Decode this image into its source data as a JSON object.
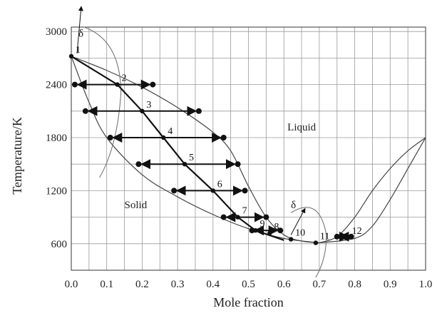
{
  "chart_data": {
    "type": "line",
    "xlabel": "Mole fraction",
    "ylabel": "Temperature/K",
    "xlim": [
      0.0,
      1.0
    ],
    "ylim": [
      300,
      3050
    ],
    "grid": true,
    "x_ticks": [
      "0.0",
      "0.1",
      "0.2",
      "0.3",
      "0.4",
      "0.5",
      "0.6",
      "0.7",
      "0.8",
      "0.9",
      "1.0"
    ],
    "y_ticks": [
      "600",
      "1200",
      "1800",
      "2400",
      "3000"
    ],
    "region_labels": [
      {
        "text": "Liquid",
        "x": 0.61,
        "y": 1880
      },
      {
        "text": "Solid",
        "x": 0.15,
        "y": 1000
      }
    ],
    "delta_labels": [
      "δ",
      "δ"
    ],
    "series": [
      {
        "key": "liquidus_left",
        "x": [
          0.0,
          0.1,
          0.2,
          0.3,
          0.4,
          0.45,
          0.5,
          0.55,
          0.6,
          0.65,
          0.7
        ],
        "y": [
          2720,
          2560,
          2370,
          2140,
          1860,
          1650,
          1250,
          900,
          700,
          630,
          610
        ]
      },
      {
        "key": "solidus_left",
        "x": [
          0.0,
          0.05,
          0.1,
          0.2,
          0.3,
          0.4,
          0.5,
          0.6,
          0.7
        ],
        "y": [
          2720,
          2200,
          1800,
          1380,
          1130,
          930,
          770,
          660,
          610
        ]
      },
      {
        "key": "liquidus_right",
        "x": [
          0.7,
          0.75,
          0.8,
          0.85,
          0.9,
          0.95,
          1.0
        ],
        "y": [
          610,
          680,
          900,
          1200,
          1450,
          1650,
          1800
        ]
      },
      {
        "key": "solidus_right",
        "x": [
          0.7,
          0.8,
          0.85,
          0.9,
          0.95,
          1.0
        ],
        "y": [
          610,
          660,
          800,
          1100,
          1450,
          1800
        ]
      }
    ],
    "steps": [
      {
        "label": "1",
        "x": 0.0,
        "y": 2720
      },
      {
        "label": "2",
        "x": 0.13,
        "y": 2400
      },
      {
        "label": "3",
        "x": 0.2,
        "y": 2100
      },
      {
        "label": "4",
        "x": 0.26,
        "y": 1800
      },
      {
        "label": "5",
        "x": 0.32,
        "y": 1500
      },
      {
        "label": "6",
        "x": 0.4,
        "y": 1200
      },
      {
        "label": "7",
        "x": 0.47,
        "y": 900
      },
      {
        "label": "8",
        "x": 0.56,
        "y": 720
      },
      {
        "label": "9",
        "x": 0.52,
        "y": 750
      },
      {
        "label": "10",
        "x": 0.62,
        "y": 650
      },
      {
        "label": "11",
        "x": 0.69,
        "y": 610
      },
      {
        "label": "12",
        "x": 0.78,
        "y": 670
      }
    ],
    "tie_lines": [
      {
        "y": 2400,
        "x1": 0.01,
        "x2": 0.23
      },
      {
        "y": 2100,
        "x1": 0.04,
        "x2": 0.36
      },
      {
        "y": 1800,
        "x1": 0.11,
        "x2": 0.43
      },
      {
        "y": 1500,
        "x1": 0.19,
        "x2": 0.47
      },
      {
        "y": 1200,
        "x1": 0.29,
        "x2": 0.49
      },
      {
        "y": 900,
        "x1": 0.43,
        "x2": 0.55
      },
      {
        "y": 750,
        "x1": 0.51,
        "x2": 0.59
      },
      {
        "y": 680,
        "x1": 0.75,
        "x2": 0.79
      }
    ],
    "path": [
      {
        "x": 0.0,
        "y": 2720
      },
      {
        "x": 0.13,
        "y": 2400
      },
      {
        "x": 0.2,
        "y": 2100
      },
      {
        "x": 0.26,
        "y": 1800
      },
      {
        "x": 0.32,
        "y": 1500
      },
      {
        "x": 0.4,
        "y": 1200
      },
      {
        "x": 0.47,
        "y": 900
      },
      {
        "x": 0.52,
        "y": 750
      },
      {
        "x": 0.6,
        "y": 640
      }
    ]
  }
}
